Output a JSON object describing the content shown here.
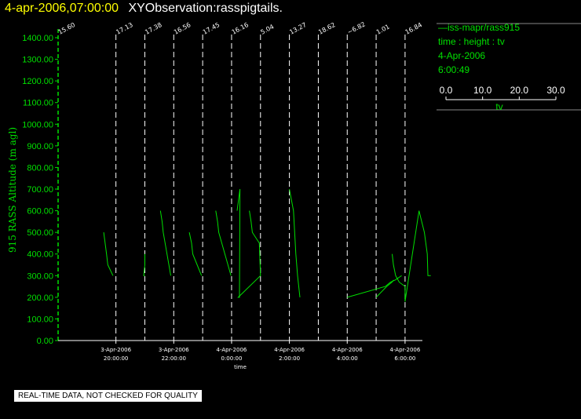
{
  "header": {
    "date_time": "4-apr-2006,07:00:00",
    "observation": "XYObservation:rasspigtails."
  },
  "legend": {
    "series_line": "—iss-mapr/rass915",
    "variables": "time : height : tv",
    "date": "4-Apr-2006",
    "time": "6:00:49",
    "scale_ticks": [
      "0.0",
      "10.0",
      "20.0",
      "30.0"
    ],
    "scale_label": "tv"
  },
  "disclaimer": "REAL-TIME DATA, NOT CHECKED FOR QUALITY",
  "colors": {
    "trace": "#00e000",
    "marker_lines": "#ffffff",
    "title_date": "#ffff00",
    "background": "#000000"
  },
  "chart_data": {
    "type": "line",
    "xlabel": "time",
    "ylabel": "915 RASS Altitude (m agl)",
    "xlim": [
      "2006-04-03T18:00:00",
      "2006-04-04T06:36:00"
    ],
    "ylim": [
      0,
      1450
    ],
    "y_ticks": [
      "0.00",
      "100.00",
      "200.00",
      "300.00",
      "400.00",
      "500.00",
      "600.00",
      "700.00",
      "800.00",
      "900.00",
      "1000.00",
      "1100.00",
      "1200.00",
      "1300.00",
      "1400.00"
    ],
    "x_ticks": [
      {
        "date": "3-Apr-2006",
        "time": "20:00:00",
        "t": "2006-04-03T20:00:00"
      },
      {
        "date": "3-Apr-2006",
        "time": "22:00:00",
        "t": "2006-04-03T22:00:00"
      },
      {
        "date": "4-Apr-2006",
        "time": "0:00:00",
        "t": "2006-04-04T00:00:00"
      },
      {
        "date": "4-Apr-2006",
        "time": "2:00:00",
        "t": "2006-04-04T02:00:00"
      },
      {
        "date": "4-Apr-2006",
        "time": "4:00:00",
        "t": "2006-04-04T04:00:00"
      },
      {
        "date": "4-Apr-2006",
        "time": "6:00:00",
        "t": "2006-04-04T06:00:00"
      }
    ],
    "profiles": [
      {
        "label": "15.60",
        "t": "2006-04-03T18:00:00",
        "tv": [],
        "height": []
      },
      {
        "label": "17.13",
        "t": "2006-04-03T20:00:00",
        "tv": [
          -12.0,
          -9.2,
          -8.0,
          -2.9
        ],
        "height": [
          500,
          400,
          350,
          300
        ]
      },
      {
        "label": "17.38",
        "t": "2006-04-03T21:00:00",
        "tv": [
          0.0,
          0.0,
          -1.1,
          0.0
        ],
        "height": [
          400,
          350,
          300,
          300
        ]
      },
      {
        "label": "16.56",
        "t": "2006-04-03T22:00:00",
        "tv": [
          -13.1,
          -11.4,
          -10.3,
          -2.9
        ],
        "height": [
          600,
          550,
          500,
          300
        ]
      },
      {
        "label": "17.45",
        "t": "2006-04-03T23:00:00",
        "tv": [
          -13.1,
          -10.9,
          -9.7,
          -1.1
        ],
        "height": [
          500,
          450,
          400,
          300
        ]
      },
      {
        "label": "16.16",
        "t": "2006-04-04T00:00:00",
        "tv": [
          -15.5,
          -13.7,
          -12.6,
          -0.6
        ],
        "height": [
          600,
          550,
          500,
          300
        ]
      },
      {
        "label": "5.04",
        "t": "2006-04-04T01:00:00",
        "tv": [
          -10.9,
          -9.2,
          -8.0,
          -1.1,
          0.0,
          -21.8,
          -20.6,
          -20.1,
          -22.9
        ],
        "height": [
          600,
          550,
          500,
          450,
          300,
          200,
          200,
          700,
          600
        ]
      },
      {
        "label": "13.27",
        "t": "2006-04-04T02:00:00",
        "tv": [
          0.0,
          4.0,
          6.3,
          8.0,
          10.3
        ],
        "height": [
          700,
          600,
          400,
          300,
          200
        ]
      },
      {
        "label": "18.62",
        "t": "2006-04-04T03:00:00",
        "tv": [],
        "height": []
      },
      {
        "label": "~6.82",
        "t": "2006-04-04T04:00:00",
        "tv": [
          0.0,
          37.3,
          42.4,
          47.0,
          53.3
        ],
        "height": [
          200,
          250,
          270,
          280,
          300
        ]
      },
      {
        "label": "1.01",
        "t": "2006-04-04T05:00:00",
        "tv": [
          0.0,
          10.3,
          15.5,
          17.2
        ],
        "height": [
          200,
          250,
          270,
          280
        ]
      },
      {
        "label": "16.84",
        "t": "2006-04-04T06:00:00",
        "tv": [
          -12.6,
          -11.4,
          -9.2,
          -5.7,
          0.0,
          0.0,
          13.7,
          18.9,
          21.8,
          22.4,
          25.2
        ],
        "height": [
          400,
          350,
          300,
          270,
          250,
          180,
          600,
          500,
          400,
          300,
          300
        ]
      }
    ]
  }
}
